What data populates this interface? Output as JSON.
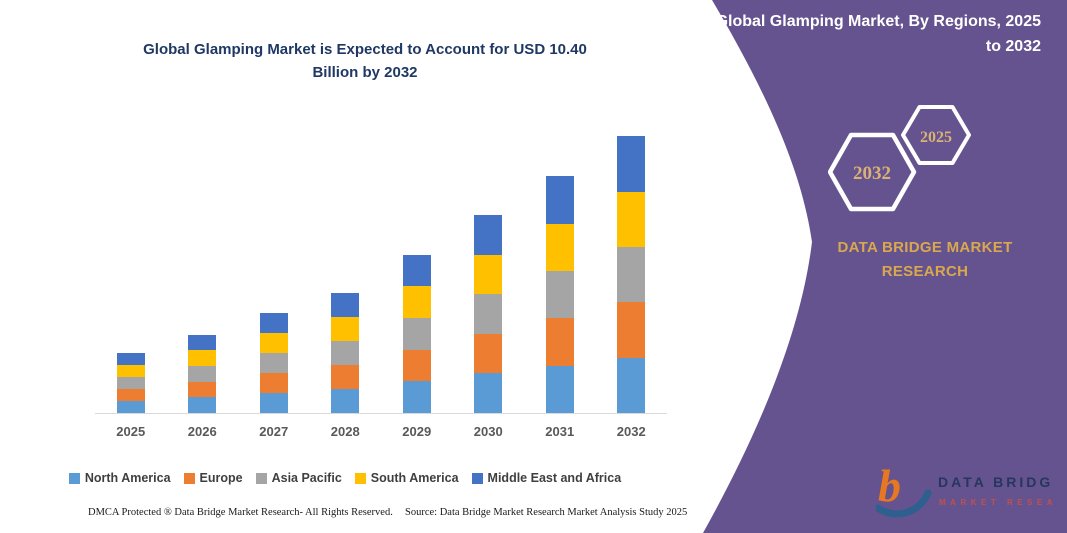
{
  "chart": {
    "title_line1": "Global Glamping Market is Expected to Account for USD 10.40",
    "title_line2": "Billion by 2032"
  },
  "chart_data": {
    "type": "bar",
    "stacked": true,
    "title": "Global Glamping Market is Expected to Account for USD 10.40 Billion by 2032",
    "unit": "USD Billion",
    "categories": [
      "2025",
      "2026",
      "2027",
      "2028",
      "2029",
      "2030",
      "2031",
      "2032"
    ],
    "series": [
      {
        "name": "North America",
        "color": "#5B9BD5",
        "values": [
          0.45,
          0.59,
          0.75,
          0.9,
          1.19,
          1.49,
          1.78,
          2.08
        ]
      },
      {
        "name": "Europe",
        "color": "#ED7D31",
        "values": [
          0.45,
          0.59,
          0.75,
          0.9,
          1.19,
          1.49,
          1.78,
          2.08
        ]
      },
      {
        "name": "Asia Pacific",
        "color": "#A5A5A5",
        "values": [
          0.45,
          0.59,
          0.75,
          0.9,
          1.19,
          1.49,
          1.78,
          2.08
        ]
      },
      {
        "name": "South America",
        "color": "#FFC000",
        "values": [
          0.45,
          0.59,
          0.75,
          0.9,
          1.19,
          1.49,
          1.78,
          2.08
        ]
      },
      {
        "name": "Middle East and Africa",
        "color": "#4472C4",
        "values": [
          0.45,
          0.59,
          0.75,
          0.9,
          1.19,
          1.49,
          1.78,
          2.08
        ]
      }
    ],
    "totals": [
      2.25,
      2.95,
      3.75,
      4.5,
      5.95,
      7.45,
      8.9,
      10.4
    ],
    "ylim": [
      0,
      10.5
    ],
    "grid": false,
    "legend_position": "bottom",
    "xlabel": "",
    "ylabel": ""
  },
  "side_panel": {
    "title": "Global Glamping Market, By Regions, 2025 to 2032",
    "hexagon_large_label": "2032",
    "hexagon_small_label": "2025",
    "brand_line1": "DATA BRIDGE MARKET",
    "brand_line2": "RESEARCH",
    "colors": {
      "background": "#655390",
      "gold_text": "#D9A84E",
      "hexagon_text": "#D9B174",
      "hexagon_stroke": "#FFFFFF"
    }
  },
  "logo": {
    "monogram": "b",
    "name": "DATA BRIDGE",
    "tagline": "MARKET RESEARCH"
  },
  "footer": {
    "left": "DMCA Protected ® Data Bridge Market Research-  All Rights Reserved.",
    "right": "Source: Data Bridge Market Research  Market Analysis Study 2025"
  }
}
